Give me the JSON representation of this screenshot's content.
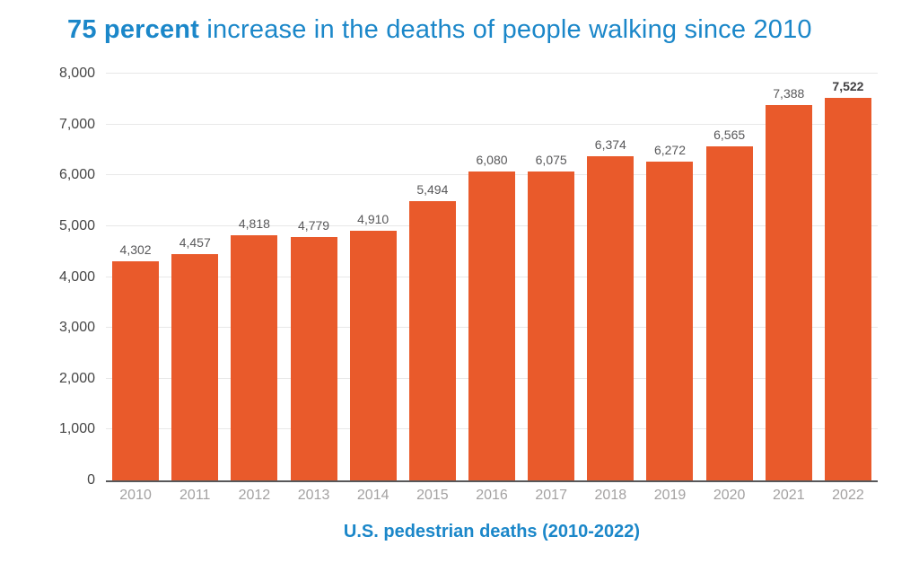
{
  "title": {
    "bold": "75 percent",
    "rest": " increase in the deaths of people walking since 2010"
  },
  "caption": "U.S. pedestrian deaths (2010-2022)",
  "colors": {
    "title_blue": "#1b87c9",
    "bar_orange": "#e95a2b",
    "gridline": "#e8e8e8",
    "axis_line": "#58585a",
    "y_tick_label": "#454545",
    "x_tick_label": "#a3a1a1",
    "value_label": "#58585a",
    "value_label_emphasis": "#403f41"
  },
  "chart_data": {
    "type": "bar",
    "title": "75 percent increase in the deaths of people walking since 2010",
    "subtitle": "U.S. pedestrian deaths (2010-2022)",
    "xlabel": "",
    "ylabel": "",
    "categories": [
      "2010",
      "2011",
      "2012",
      "2013",
      "2014",
      "2015",
      "2016",
      "2017",
      "2018",
      "2019",
      "2020",
      "2021",
      "2022"
    ],
    "values": [
      4302,
      4457,
      4818,
      4779,
      4910,
      5494,
      6080,
      6075,
      6374,
      6272,
      6565,
      7388,
      7522
    ],
    "value_labels": [
      "4,302",
      "4,457",
      "4,818",
      "4,779",
      "4,910",
      "5,494",
      "6,080",
      "6,075",
      "6,374",
      "6,272",
      "6,565",
      "7,388",
      "7,522"
    ],
    "ylim": [
      0,
      8000
    ],
    "ytick_interval": 1000,
    "ytick_labels": [
      "0",
      "1,000",
      "2,000",
      "3,000",
      "4,000",
      "5,000",
      "6,000",
      "7,000",
      "8,000"
    ],
    "grid": true,
    "legend": false,
    "last_value_bold": true
  }
}
